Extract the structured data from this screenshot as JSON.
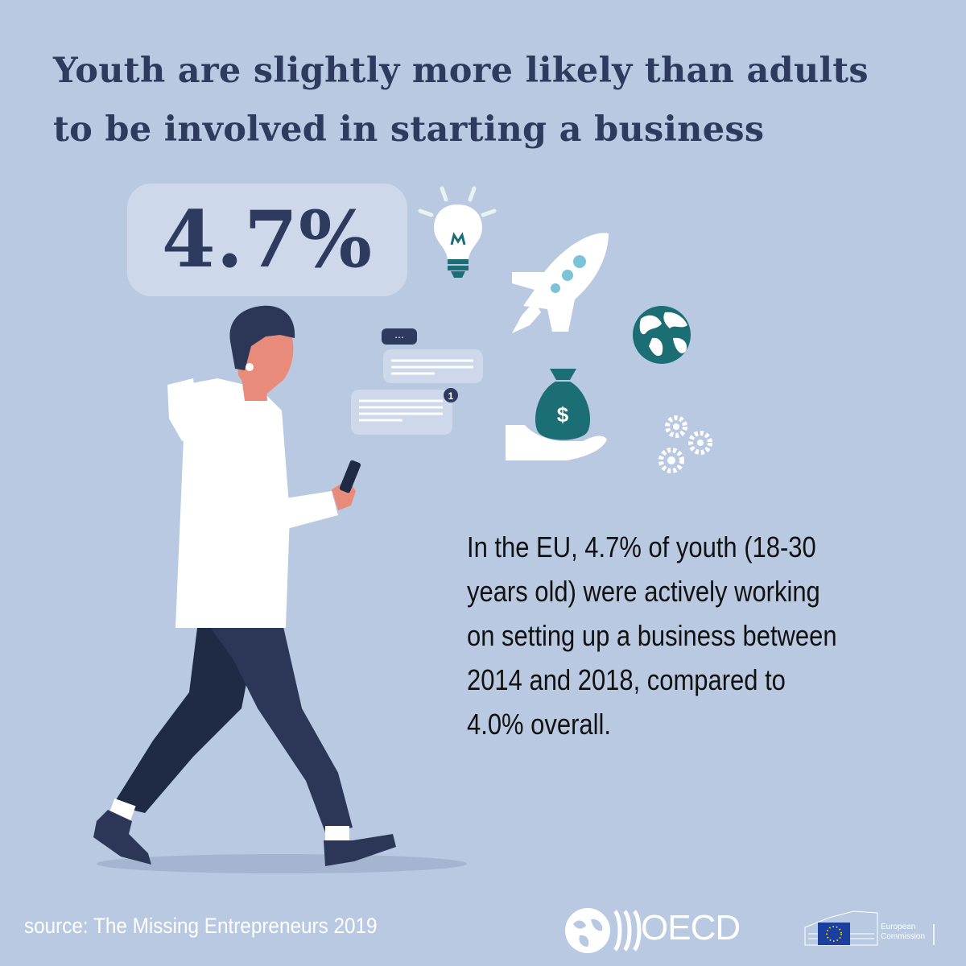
{
  "title": {
    "line1": "Youth are slightly more likely than adults",
    "line2": "to be involved in starting a business"
  },
  "stat": {
    "value": "4.7%"
  },
  "description": {
    "line1": "In the EU, 4.7% of youth (18-30",
    "line2": "years old) were actively working",
    "line3": "on setting up a business between",
    "line4": "2014 and 2018, compared to",
    "line5": "4.0% overall."
  },
  "chat": {
    "typing": "...",
    "badge": "1"
  },
  "icons": {
    "bulb": "lightbulb-icon",
    "rocket": "rocket-icon",
    "globe": "globe-icon",
    "money": "money-bag-icon",
    "gears": "gears-icon",
    "dollar": "$"
  },
  "footer": {
    "source": "source: The Missing Entrepreneurs 2019",
    "oecd_label": "OECD",
    "ec_line1": "European",
    "ec_line2": "Commission"
  },
  "colors": {
    "background": "#b8c9e1",
    "title": "#2e3b5e",
    "accent_teal": "#1b6e73",
    "navy": "#2c3656"
  }
}
